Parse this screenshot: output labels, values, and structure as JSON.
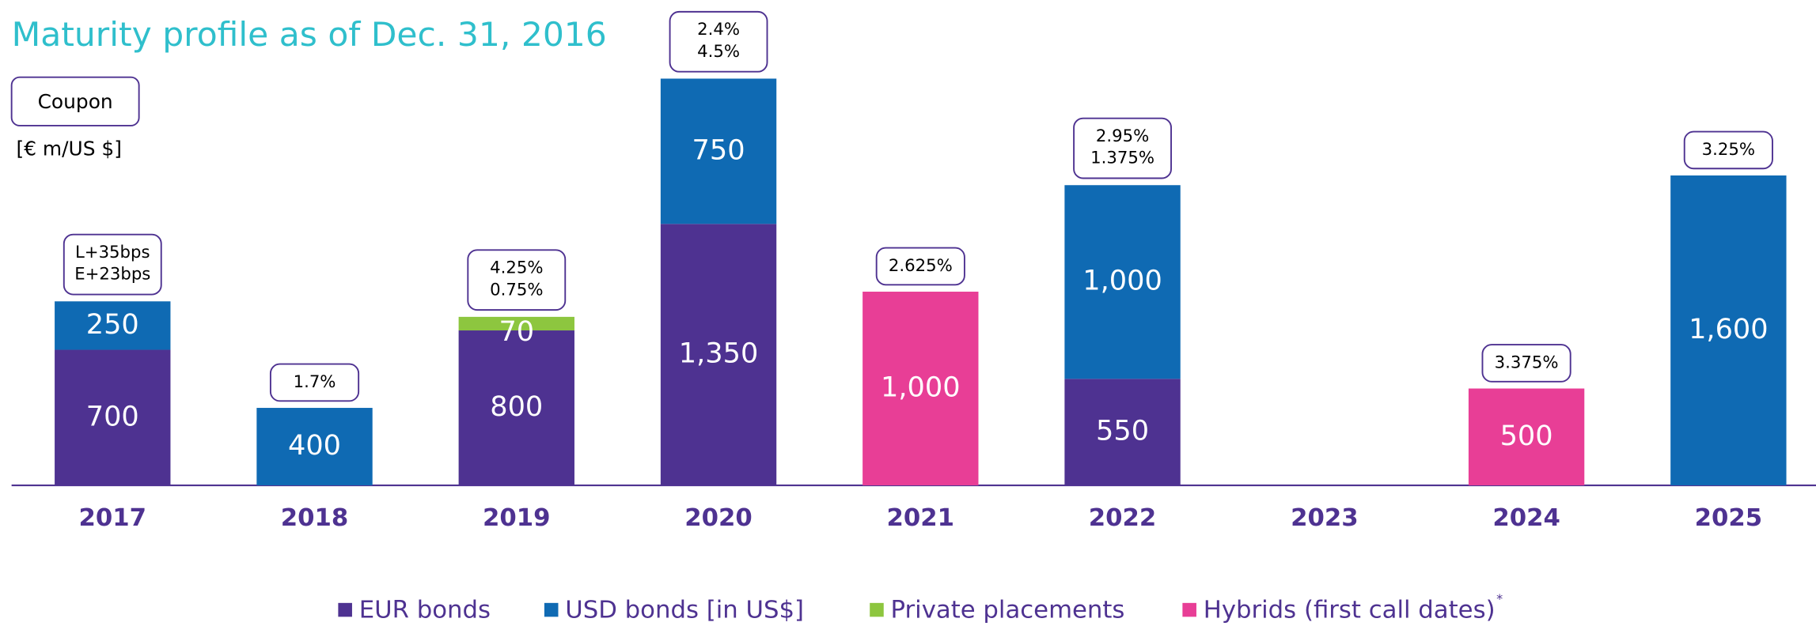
{
  "chart_data": {
    "type": "stacked_bar",
    "title": "Maturity profile as of Dec. 31, 2016",
    "coupon_label": "Coupon",
    "unit_label": "[€ m/US $]",
    "categories": [
      "2017",
      "2018",
      "2019",
      "2020",
      "2021",
      "2022",
      "2023",
      "2024",
      "2025"
    ],
    "series": [
      {
        "name": "EUR bonds",
        "color": "#4e3291",
        "values": [
          700,
          null,
          800,
          1350,
          null,
          550,
          null,
          null,
          null
        ],
        "value_labels": [
          "700",
          null,
          "800",
          "1,350",
          null,
          "550",
          null,
          null,
          null
        ]
      },
      {
        "name": "USD bonds [in US$]",
        "color": "#0f6ab3",
        "values": [
          250,
          400,
          null,
          750,
          null,
          1000,
          null,
          null,
          1600
        ],
        "value_labels": [
          "250",
          "400",
          null,
          "750",
          null,
          "1,000",
          null,
          null,
          "1,600"
        ]
      },
      {
        "name": "Private placements",
        "color": "#8dc63f",
        "values": [
          null,
          null,
          70,
          null,
          null,
          null,
          null,
          null,
          null
        ],
        "value_labels": [
          null,
          null,
          "70",
          null,
          null,
          null,
          null,
          null,
          null
        ]
      },
      {
        "name": "Hybrids (first call dates)",
        "color": "#e83e96",
        "values": [
          null,
          null,
          null,
          null,
          1000,
          null,
          null,
          500,
          null
        ],
        "value_labels": [
          null,
          null,
          null,
          null,
          "1,000",
          null,
          null,
          "500",
          null
        ]
      }
    ],
    "legend_note": "*",
    "coupons": [
      [
        "L+35bps",
        "E+23bps"
      ],
      [
        "1.7%"
      ],
      [
        "4.25%",
        "0.75%"
      ],
      [
        "2.4%",
        "4.5%"
      ],
      [
        "2.625%"
      ],
      [
        "2.95%",
        "1.375%"
      ],
      null,
      [
        "3.375%"
      ],
      [
        "3.25%"
      ]
    ],
    "ylim": [
      0,
      2500
    ]
  }
}
